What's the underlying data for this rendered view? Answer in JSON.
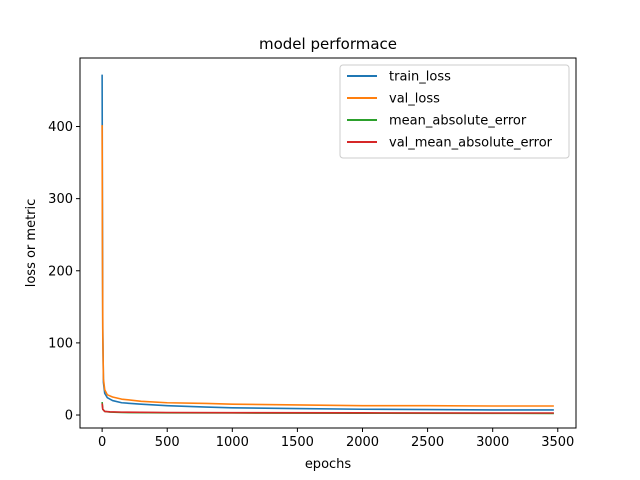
{
  "chart_data": {
    "type": "line",
    "title": "model performace",
    "xlabel": "epochs",
    "ylabel": "loss or metric",
    "xlim": [
      -170,
      3640
    ],
    "ylim": [
      -18,
      495
    ],
    "xticks": [
      0,
      500,
      1000,
      1500,
      2000,
      2500,
      3000,
      3500
    ],
    "yticks": [
      0,
      100,
      200,
      300,
      400
    ],
    "grid": false,
    "legend_position": "top-right",
    "series": [
      {
        "name": "train_loss",
        "color": "#1f77b4",
        "x": [
          0,
          2,
          5,
          10,
          20,
          40,
          80,
          150,
          300,
          500,
          800,
          1000,
          1500,
          2000,
          2500,
          3000,
          3470
        ],
        "y": [
          472,
          300,
          120,
          45,
          30,
          24,
          20,
          17,
          15,
          13,
          11,
          10,
          9,
          8,
          7.5,
          7,
          7
        ]
      },
      {
        "name": "val_loss",
        "color": "#ff7f0e",
        "x": [
          0,
          2,
          5,
          10,
          20,
          40,
          80,
          150,
          300,
          500,
          800,
          1000,
          1500,
          2000,
          2500,
          3000,
          3470
        ],
        "y": [
          402,
          250,
          110,
          50,
          35,
          28,
          25,
          22,
          19,
          17,
          16,
          15,
          14,
          13,
          13,
          12.5,
          12.5
        ]
      },
      {
        "name": "mean_absolute_error",
        "color": "#2ca02c",
        "x": [
          0,
          5,
          20,
          60,
          150,
          500,
          1000,
          2000,
          3000,
          3470
        ],
        "y": [
          18,
          8,
          5,
          4,
          3.5,
          3,
          2.8,
          2.5,
          2.3,
          2.2
        ]
      },
      {
        "name": "val_mean_absolute_error",
        "color": "#d62728",
        "x": [
          0,
          5,
          20,
          60,
          150,
          500,
          1000,
          2000,
          3000,
          3470
        ],
        "y": [
          16,
          8,
          5,
          4.5,
          4,
          3.5,
          3.2,
          3,
          2.8,
          2.8
        ]
      }
    ]
  }
}
